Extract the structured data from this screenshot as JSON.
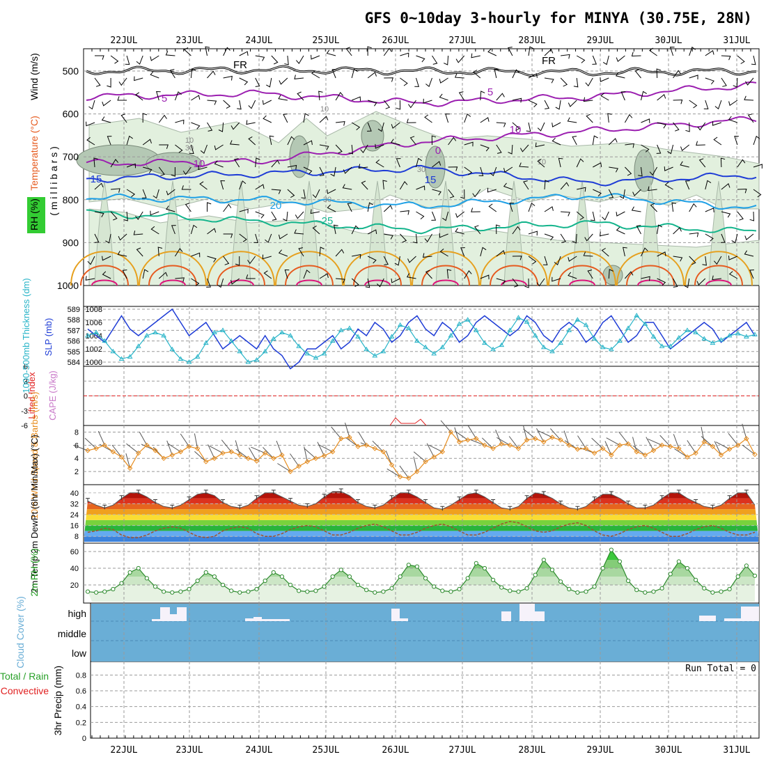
{
  "title": "GFS 0~10day 3-hourly for MINYA (30.75E, 28N)",
  "dates": [
    "22JUL",
    "23JUL",
    "24JUL",
    "25JUL",
    "26JUL",
    "27JUL",
    "28JUL",
    "29JUL",
    "30JUL",
    "31JUL"
  ],
  "colors": {
    "temp_cold": "#9b1fb0",
    "temp_blue": "#1e3cd6",
    "temp_cyan": "#1ea0e6",
    "temp_green": "#14b48c",
    "temp_orange": "#e6a01e",
    "temp_red": "#e65a1e",
    "temp_magenta": "#dc147a",
    "slp": "#1e3cd6",
    "thickness": "#28b4c8",
    "wind": "#e68c1e",
    "rh": "#28a028",
    "cloud": "#6aaed6",
    "li": "#e02020"
  },
  "chart_data": [
    {
      "type": "cross-section",
      "id": "upper",
      "title": "Temperature (°C) Wind (m/s) RH (%)",
      "ylabel": "millibars",
      "ylim": [
        1000,
        450
      ],
      "yticks": [
        500,
        600,
        700,
        800,
        900,
        1000
      ],
      "side_labels": [
        "Wind (m/s)",
        "Temperature (°C)",
        "RH (%)",
        "( m i l l i b a r s )"
      ],
      "isotherms": [
        {
          "label": "FR",
          "color": "#000000",
          "values": [
            500,
            497,
            500,
            503,
            500
          ]
        },
        {
          "label": "5",
          "color": "#9b1fb0",
          "values": [
            560,
            552,
            575,
            560,
            532
          ]
        },
        {
          "label": "10",
          "color": "#9b1fb0",
          "values": [
            715,
            712,
            665,
            640,
            612
          ]
        },
        {
          "label": "15",
          "color": "#1e3cd6",
          "values": [
            752,
            740,
            727,
            760,
            742
          ]
        },
        {
          "label": "20",
          "color": "#1ea0e6",
          "values": [
            795,
            800,
            815,
            790,
            820
          ]
        },
        {
          "label": "25",
          "color": "#14b48c",
          "values": [
            830,
            850,
            870,
            855,
            875
          ]
        }
      ],
      "contour_labels": [
        "FR",
        "FR",
        "5",
        "5",
        "10",
        "10",
        "0",
        "15",
        "15",
        "20",
        "25",
        "10",
        "30",
        "30",
        "10",
        "30",
        "10"
      ]
    },
    {
      "type": "line",
      "id": "slp-thickness",
      "ylabel_left": "1000-500mb Thickness (dm)",
      "ylabel_right": "SLP (mb)",
      "yticks_left": [
        584,
        585,
        586,
        587,
        588,
        589
      ],
      "yticks_right": [
        1000,
        1002,
        1004,
        1006,
        1008
      ],
      "series": [
        {
          "name": "SLP",
          "values": [
            1005,
            1004,
            1003,
            1005,
            1007,
            1005,
            1004,
            1005,
            1006,
            1007,
            1008,
            1006,
            1004,
            1005,
            1006,
            1004,
            1002,
            1003,
            1004,
            1003,
            1002,
            1004,
            1002,
            1001,
            999,
            1000,
            1002,
            1002,
            1003,
            1004,
            1002,
            1003,
            1005,
            1004,
            1006,
            1005,
            1003,
            1004,
            1006,
            1007,
            1005,
            1004,
            1006,
            1005,
            1003,
            1004,
            1006,
            1007,
            1006,
            1005,
            1004,
            1005,
            1007,
            1006,
            1004,
            1003,
            1005,
            1006,
            1005,
            1003,
            1004,
            1006,
            1007,
            1005,
            1003,
            1004,
            1006,
            1006,
            1004,
            1002,
            1003,
            1004,
            1005,
            1006,
            1005,
            1003,
            1004,
            1005,
            1006,
            1004
          ]
        },
        {
          "name": "Thickness",
          "values": [
            586.5,
            586.8,
            586.0,
            585.0,
            584.3,
            584.5,
            585.5,
            586.5,
            586.8,
            586.5,
            585.2,
            584.3,
            584.0,
            584.5,
            585.8,
            586.8,
            587.0,
            586.0,
            585.0,
            584.0,
            584.2,
            585.0,
            586.2,
            586.8,
            586.5,
            585.5,
            584.8,
            584.4,
            584.8,
            586.0,
            587.0,
            587.2,
            586.4,
            585.2,
            584.6,
            585.0,
            586.4,
            587.5,
            587.2,
            586.0,
            585.4,
            584.8,
            585.4,
            586.5,
            587.6,
            588.0,
            587.0,
            585.8,
            585.2,
            585.6,
            587.0,
            588.2,
            587.8,
            586.5,
            585.4,
            585.0,
            585.8,
            587.0,
            588.0,
            587.5,
            586.2,
            585.4,
            585.2,
            586.0,
            587.2,
            588.4,
            587.6,
            586.4,
            585.5,
            585.5,
            586.3,
            587.0,
            586.8,
            586.2,
            585.8,
            586.1,
            586.5,
            586.7,
            586.4,
            586.6
          ]
        }
      ]
    },
    {
      "type": "line",
      "id": "cape-li",
      "ylabel_left": "Lifted Index",
      "ylabel_right": "CAPE (J/kg)",
      "yticks": [
        6,
        3,
        0,
        -3,
        -6
      ],
      "ytick_labels": [
        "6",
        "3",
        "0",
        "-3",
        "-6"
      ],
      "reference_line": 0
    },
    {
      "type": "line",
      "id": "wind10m",
      "ylabel": "10m Wind Speed & Barbs (m/s)",
      "yticks": [
        2,
        4,
        6,
        8
      ],
      "series": [
        {
          "name": "Speed",
          "values": [
            5.2,
            5.5,
            6.0,
            5.0,
            4.2,
            2.5,
            4.8,
            6.0,
            5.2,
            4.0,
            4.5,
            5.0,
            5.8,
            5.5,
            3.5,
            4.0,
            4.8,
            5.0,
            4.5,
            4.0,
            3.6,
            4.8,
            4.0,
            4.5,
            2.0,
            2.8,
            3.5,
            4.0,
            4.4,
            5.0,
            7.0,
            7.2,
            5.8,
            6.0,
            5.5,
            5.0,
            3.0,
            1.2,
            1.0,
            2.0,
            3.5,
            4.2,
            5.0,
            8.0,
            6.5,
            6.8,
            7.0,
            6.0,
            5.5,
            6.2,
            6.0,
            5.5,
            6.8,
            7.0,
            6.5,
            7.2,
            6.8,
            6.0,
            5.4,
            5.5,
            4.8,
            5.5,
            4.5,
            6.0,
            6.2,
            5.0,
            4.5,
            5.2,
            6.0,
            5.8,
            5.5,
            4.2,
            4.8,
            6.5,
            5.8,
            4.5,
            5.4,
            6.0,
            7.0,
            4.6
          ]
        }
      ]
    },
    {
      "type": "area",
      "id": "temp2m",
      "ylabel": "2m Temp 2m DewPt (6hr Min/Max) (°C)",
      "yticks": [
        8,
        16,
        24,
        32,
        40
      ],
      "series": [
        {
          "name": "Temp",
          "values": [
            34,
            31,
            29,
            31,
            36,
            40,
            40,
            37,
            33,
            30,
            29,
            31,
            35,
            39,
            40,
            38,
            33,
            30,
            29,
            31,
            36,
            40,
            40,
            37,
            34,
            31,
            30,
            32,
            37,
            41,
            41,
            38,
            33,
            30,
            29,
            31,
            36,
            40,
            40,
            37,
            33,
            29,
            28,
            31,
            35,
            39,
            40,
            37,
            33,
            29,
            28,
            30,
            36,
            40,
            39,
            36,
            32,
            29,
            28,
            30,
            35,
            39,
            39,
            36,
            32,
            29,
            29,
            31,
            36,
            40,
            40,
            36,
            33,
            30,
            29,
            31,
            36,
            40,
            40,
            31
          ]
        },
        {
          "name": "DewPt",
          "values": [
            11,
            12,
            14,
            13,
            9,
            7,
            7,
            9,
            12,
            14,
            15,
            14,
            11,
            8,
            7,
            8,
            12,
            14,
            15,
            14,
            10,
            8,
            8,
            10,
            13,
            15,
            16,
            15,
            12,
            9,
            9,
            11,
            14,
            16,
            17,
            15,
            12,
            9,
            9,
            11,
            14,
            16,
            17,
            15,
            12,
            9,
            9,
            11,
            14,
            17,
            19,
            18,
            15,
            12,
            11,
            12,
            15,
            17,
            18,
            16,
            12,
            9,
            8,
            10,
            13,
            15,
            16,
            14,
            11,
            8,
            8,
            10,
            13,
            15,
            16,
            14,
            11,
            9,
            9,
            11
          ]
        }
      ]
    },
    {
      "type": "area",
      "id": "rh2m",
      "ylabel": "2m RH (%)",
      "yticks": [
        20,
        40,
        60
      ],
      "series": [
        {
          "name": "RH",
          "values": [
            12,
            11,
            12,
            15,
            22,
            35,
            40,
            28,
            18,
            12,
            11,
            12,
            15,
            25,
            35,
            30,
            20,
            13,
            11,
            12,
            15,
            25,
            35,
            30,
            20,
            13,
            12,
            13,
            18,
            30,
            38,
            30,
            20,
            14,
            11,
            12,
            16,
            30,
            44,
            42,
            28,
            18,
            13,
            12,
            15,
            28,
            46,
            40,
            26,
            17,
            13,
            12,
            16,
            32,
            50,
            38,
            24,
            15,
            11,
            12,
            18,
            40,
            62,
            48,
            25,
            14,
            11,
            12,
            16,
            33,
            48,
            40,
            26,
            16,
            11,
            12,
            15,
            30,
            43,
            31
          ]
        }
      ]
    },
    {
      "type": "area",
      "id": "cloud",
      "ylabel": "Cloud Cover (%)",
      "categories": [
        "high",
        "middle",
        "low"
      ]
    },
    {
      "type": "bar",
      "id": "precip",
      "ylabel_left": "Total / Rain",
      "ylabel_left2": "Convective",
      "ylabel": "3hr Precip (mm)",
      "yticks": [
        0,
        0.2,
        0.4,
        0.6,
        0.8
      ],
      "ytick_labels": [
        "0",
        "0.2",
        "0.4",
        "0.6",
        "0.8"
      ],
      "ylim": [
        0,
        1
      ],
      "run_total": "Run Total = 0"
    }
  ]
}
